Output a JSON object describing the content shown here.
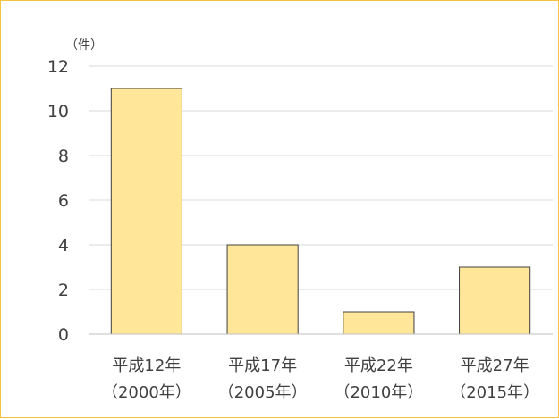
{
  "chart_data": {
    "type": "bar",
    "title": "",
    "xlabel": "",
    "ylabel": "",
    "unit_label": "（件）",
    "categories": [
      [
        "平成12年",
        "（2000年）"
      ],
      [
        "平成17年",
        "（2005年）"
      ],
      [
        "平成22年",
        "（2010年）"
      ],
      [
        "平成27年",
        "（2015年）"
      ]
    ],
    "values": [
      11,
      4,
      1,
      3
    ],
    "ylim": [
      0,
      12
    ],
    "yticks": [
      0,
      2,
      4,
      6,
      8,
      10,
      12
    ],
    "grid": true,
    "legend": "none",
    "colors": {
      "bar_fill": "#ffe699",
      "bar_stroke": "#404040",
      "frame": "#f5c242",
      "grid": "#d9d9d9",
      "axis": "#bfbfbf"
    }
  }
}
